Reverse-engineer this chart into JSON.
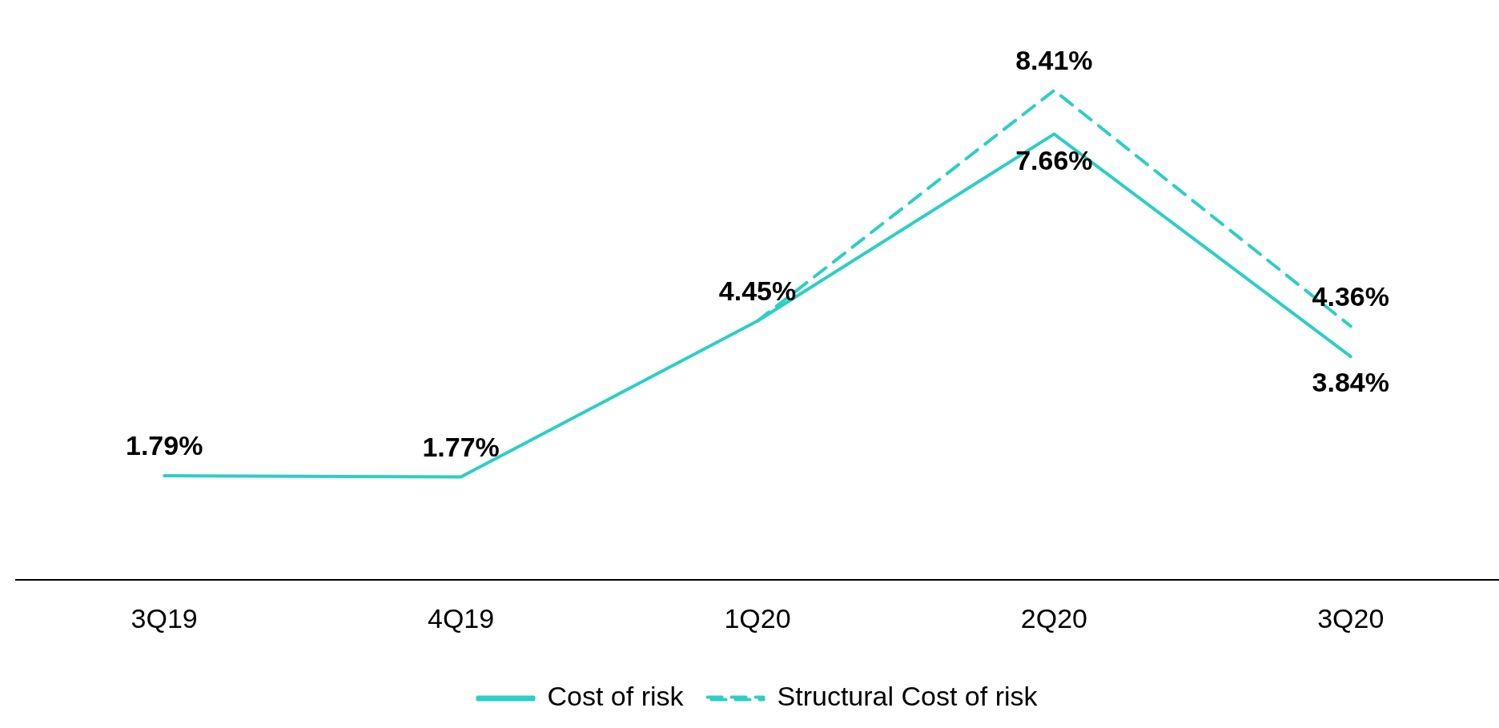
{
  "chart_data": {
    "type": "line",
    "categories": [
      "3Q19",
      "4Q19",
      "1Q20",
      "2Q20",
      "3Q20"
    ],
    "series": [
      {
        "name": "Cost of risk",
        "color": "#2ccfc4",
        "line_style": "solid",
        "values": [
          1.79,
          1.77,
          4.45,
          7.66,
          3.84
        ],
        "value_labels": [
          "1.79%",
          "1.77%",
          "4.45%",
          "7.66%",
          "3.84%"
        ]
      },
      {
        "name": "Structural Cost of risk",
        "color": "#2ccfc4",
        "line_style": "dashed",
        "values": [
          null,
          null,
          4.45,
          8.41,
          4.36
        ],
        "value_labels": [
          null,
          null,
          null,
          "8.41%",
          "4.36%"
        ]
      }
    ],
    "legend": "bottom",
    "grid": false,
    "marker": "none"
  }
}
